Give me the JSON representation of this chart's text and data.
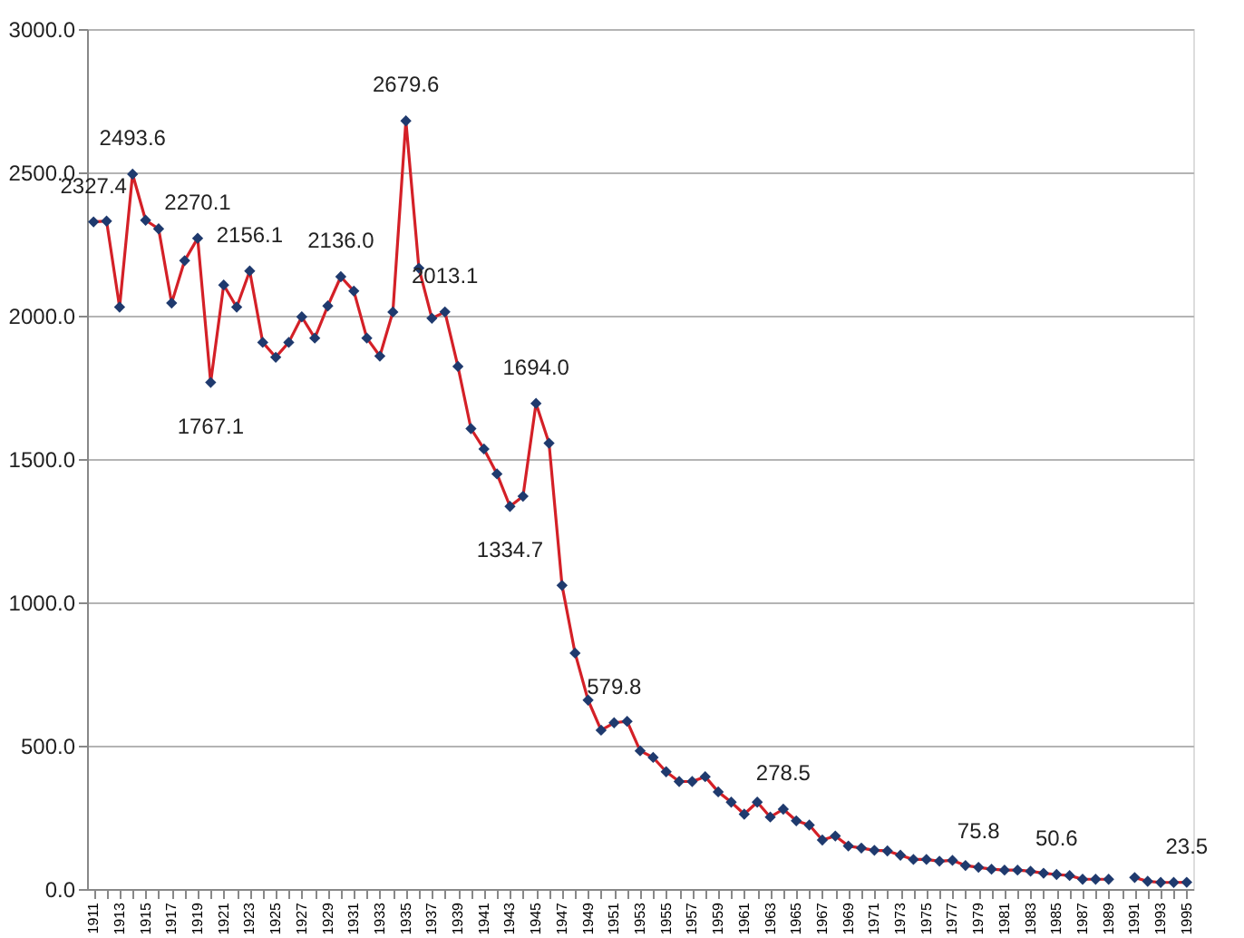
{
  "chart_data": {
    "type": "line",
    "categories": [
      "1911",
      null,
      "1913",
      null,
      "1915",
      null,
      "1917",
      null,
      "1919",
      null,
      "1921",
      null,
      "1923",
      null,
      "1925",
      null,
      "1927",
      null,
      "1929",
      null,
      "1931",
      null,
      "1933",
      null,
      "1935",
      null,
      "1937",
      null,
      "1939",
      null,
      "1941",
      null,
      "1943",
      null,
      "1945",
      null,
      "1947",
      null,
      "1949",
      null,
      "1951",
      null,
      "1953",
      null,
      "1955",
      null,
      "1957",
      null,
      "1959",
      null,
      "1961",
      null,
      "1963",
      null,
      "1965",
      null,
      "1967",
      null,
      "1969",
      null,
      "1971",
      null,
      "1973",
      null,
      "1975",
      null,
      "1977",
      null,
      "1979",
      null,
      "1981",
      null,
      "1983",
      null,
      "1985",
      null,
      "1987",
      null,
      "1989",
      null,
      "1991",
      null,
      "1993",
      null,
      "1995"
    ],
    "series": [
      {
        "color": "#d42027",
        "colors": [
          "#1f3a6e",
          "#1f3a6e",
          "#1f3a6e",
          "#1f3a6e",
          "#1f3a6e",
          "#1f3a6e",
          "#1f3a6e",
          "#1f3a6e",
          "#1f3a6e",
          "#1f3a6e",
          "#1f3a6e",
          "#1f3a6e",
          "#1f3a6e",
          "#1f3a6e",
          "#1f3a6e",
          "#1f3a6e",
          "#1f3a6e",
          "#1f3a6e",
          "#1f3a6e",
          "#1f3a6e",
          "#1f3a6e",
          "#1f3a6e",
          "#1f3a6e",
          "#1f3a6e",
          "#1f3a6e",
          "#1f3a6e",
          "#1f3a6e",
          "#1f3a6e",
          "#1f3a6e",
          "#1f3a6e",
          "#1f3a6e",
          "#1f3a6e",
          "#1f3a6e",
          "#1f3a6e",
          "#1f3a6e",
          "#1f3a6e",
          "#1f3a6e",
          "#1f3a6e",
          "#1f3a6e",
          "#1f3a6e",
          "#1f3a6e",
          "#1f3a6e",
          "#1f3a6e",
          "#1f3a6e",
          "#1f3a6e",
          "#1f3a6e",
          "#1f3a6e",
          "#1f3a6e",
          "#1f3a6e",
          "#1f3a6e",
          "#1f3a6e",
          "#1f3a6e",
          "#1f3a6e",
          "#1f3a6e",
          "#1f3a6e",
          "#1f3a6e",
          "#1f3a6e",
          "#1f3a6e",
          "#1f3a6e",
          "#1f3a6e",
          "#1f3a6e",
          "#1f3a6e",
          "#1f3a6e",
          "#1f3a6e",
          "#1f3a6e",
          "#1f3a6e",
          "#1f3a6e",
          "#1f3a6e",
          "#1f3a6e",
          "#1f3a6e",
          "#1f3a6e",
          "#1f3a6e",
          "#1f3a6e",
          "#1f3a6e",
          "#1f3a6e",
          "#1f3a6e",
          "#1f3a6e",
          "#1f3a6e",
          "#1f3a6e",
          "#1f3a6e",
          "#1f3a6e",
          "#1f3a6e",
          "#1f3a6e",
          "#1f3a6e",
          "#1f3a6e"
        ],
        "values": [
          2327.4,
          2330,
          2030,
          2493.6,
          2333,
          2303,
          2044,
          2192,
          2270.1,
          1767.1,
          2107,
          2030,
          2156.1,
          1907,
          1855,
          1907,
          1996,
          1922,
          2034,
          2136.0,
          2086,
          1922,
          1859,
          2013,
          2679.6,
          2166,
          1991,
          2013.1,
          1823,
          1606,
          1535,
          1448,
          1334.7,
          1370,
          1694.0,
          1555,
          1059,
          823,
          659,
          554,
          579.8,
          585,
          482,
          459,
          409,
          375,
          375,
          392,
          339,
          303,
          261,
          303,
          251,
          278.5,
          238,
          223,
          171,
          185,
          150,
          143,
          135,
          133,
          118,
          103,
          103,
          97,
          100,
          82,
          75.8,
          69,
          66,
          66,
          62,
          55,
          50.6,
          47,
          34,
          34,
          34,
          null,
          40,
          27,
          23,
          23,
          23.5
        ],
        "value_labels": [
          "2327.4",
          null,
          null,
          "2493.6",
          null,
          null,
          null,
          null,
          "2270.1",
          "1767.1",
          null,
          null,
          "2156.1",
          null,
          null,
          null,
          null,
          null,
          null,
          "2136.0",
          null,
          null,
          null,
          null,
          "2679.6",
          null,
          null,
          "2013.1",
          null,
          null,
          null,
          null,
          "1334.7",
          null,
          "1694.0",
          null,
          null,
          null,
          null,
          null,
          "579.8",
          null,
          null,
          null,
          null,
          null,
          null,
          null,
          null,
          null,
          null,
          null,
          null,
          "278.5",
          null,
          null,
          null,
          null,
          null,
          null,
          null,
          null,
          null,
          null,
          null,
          null,
          null,
          null,
          "75.8",
          null,
          null,
          null,
          null,
          null,
          "50.6",
          null,
          null,
          null,
          null,
          null,
          null,
          null,
          null,
          null,
          "23.5"
        ]
      }
    ],
    "ylim": [
      0,
      3000
    ],
    "yticks": [
      {
        "value": 0,
        "label": "0.0"
      },
      {
        "value": 500,
        "label": "500.0"
      },
      {
        "value": 1000,
        "label": "1000.0"
      },
      {
        "value": 1500,
        "label": "1500.0"
      },
      {
        "value": 2000,
        "label": "2000.0"
      },
      {
        "value": 2500,
        "label": "2500.0"
      },
      {
        "value": 3000,
        "label": "3000.0"
      }
    ],
    "grid": "y",
    "marker": "diamond",
    "line_style": "solid"
  }
}
